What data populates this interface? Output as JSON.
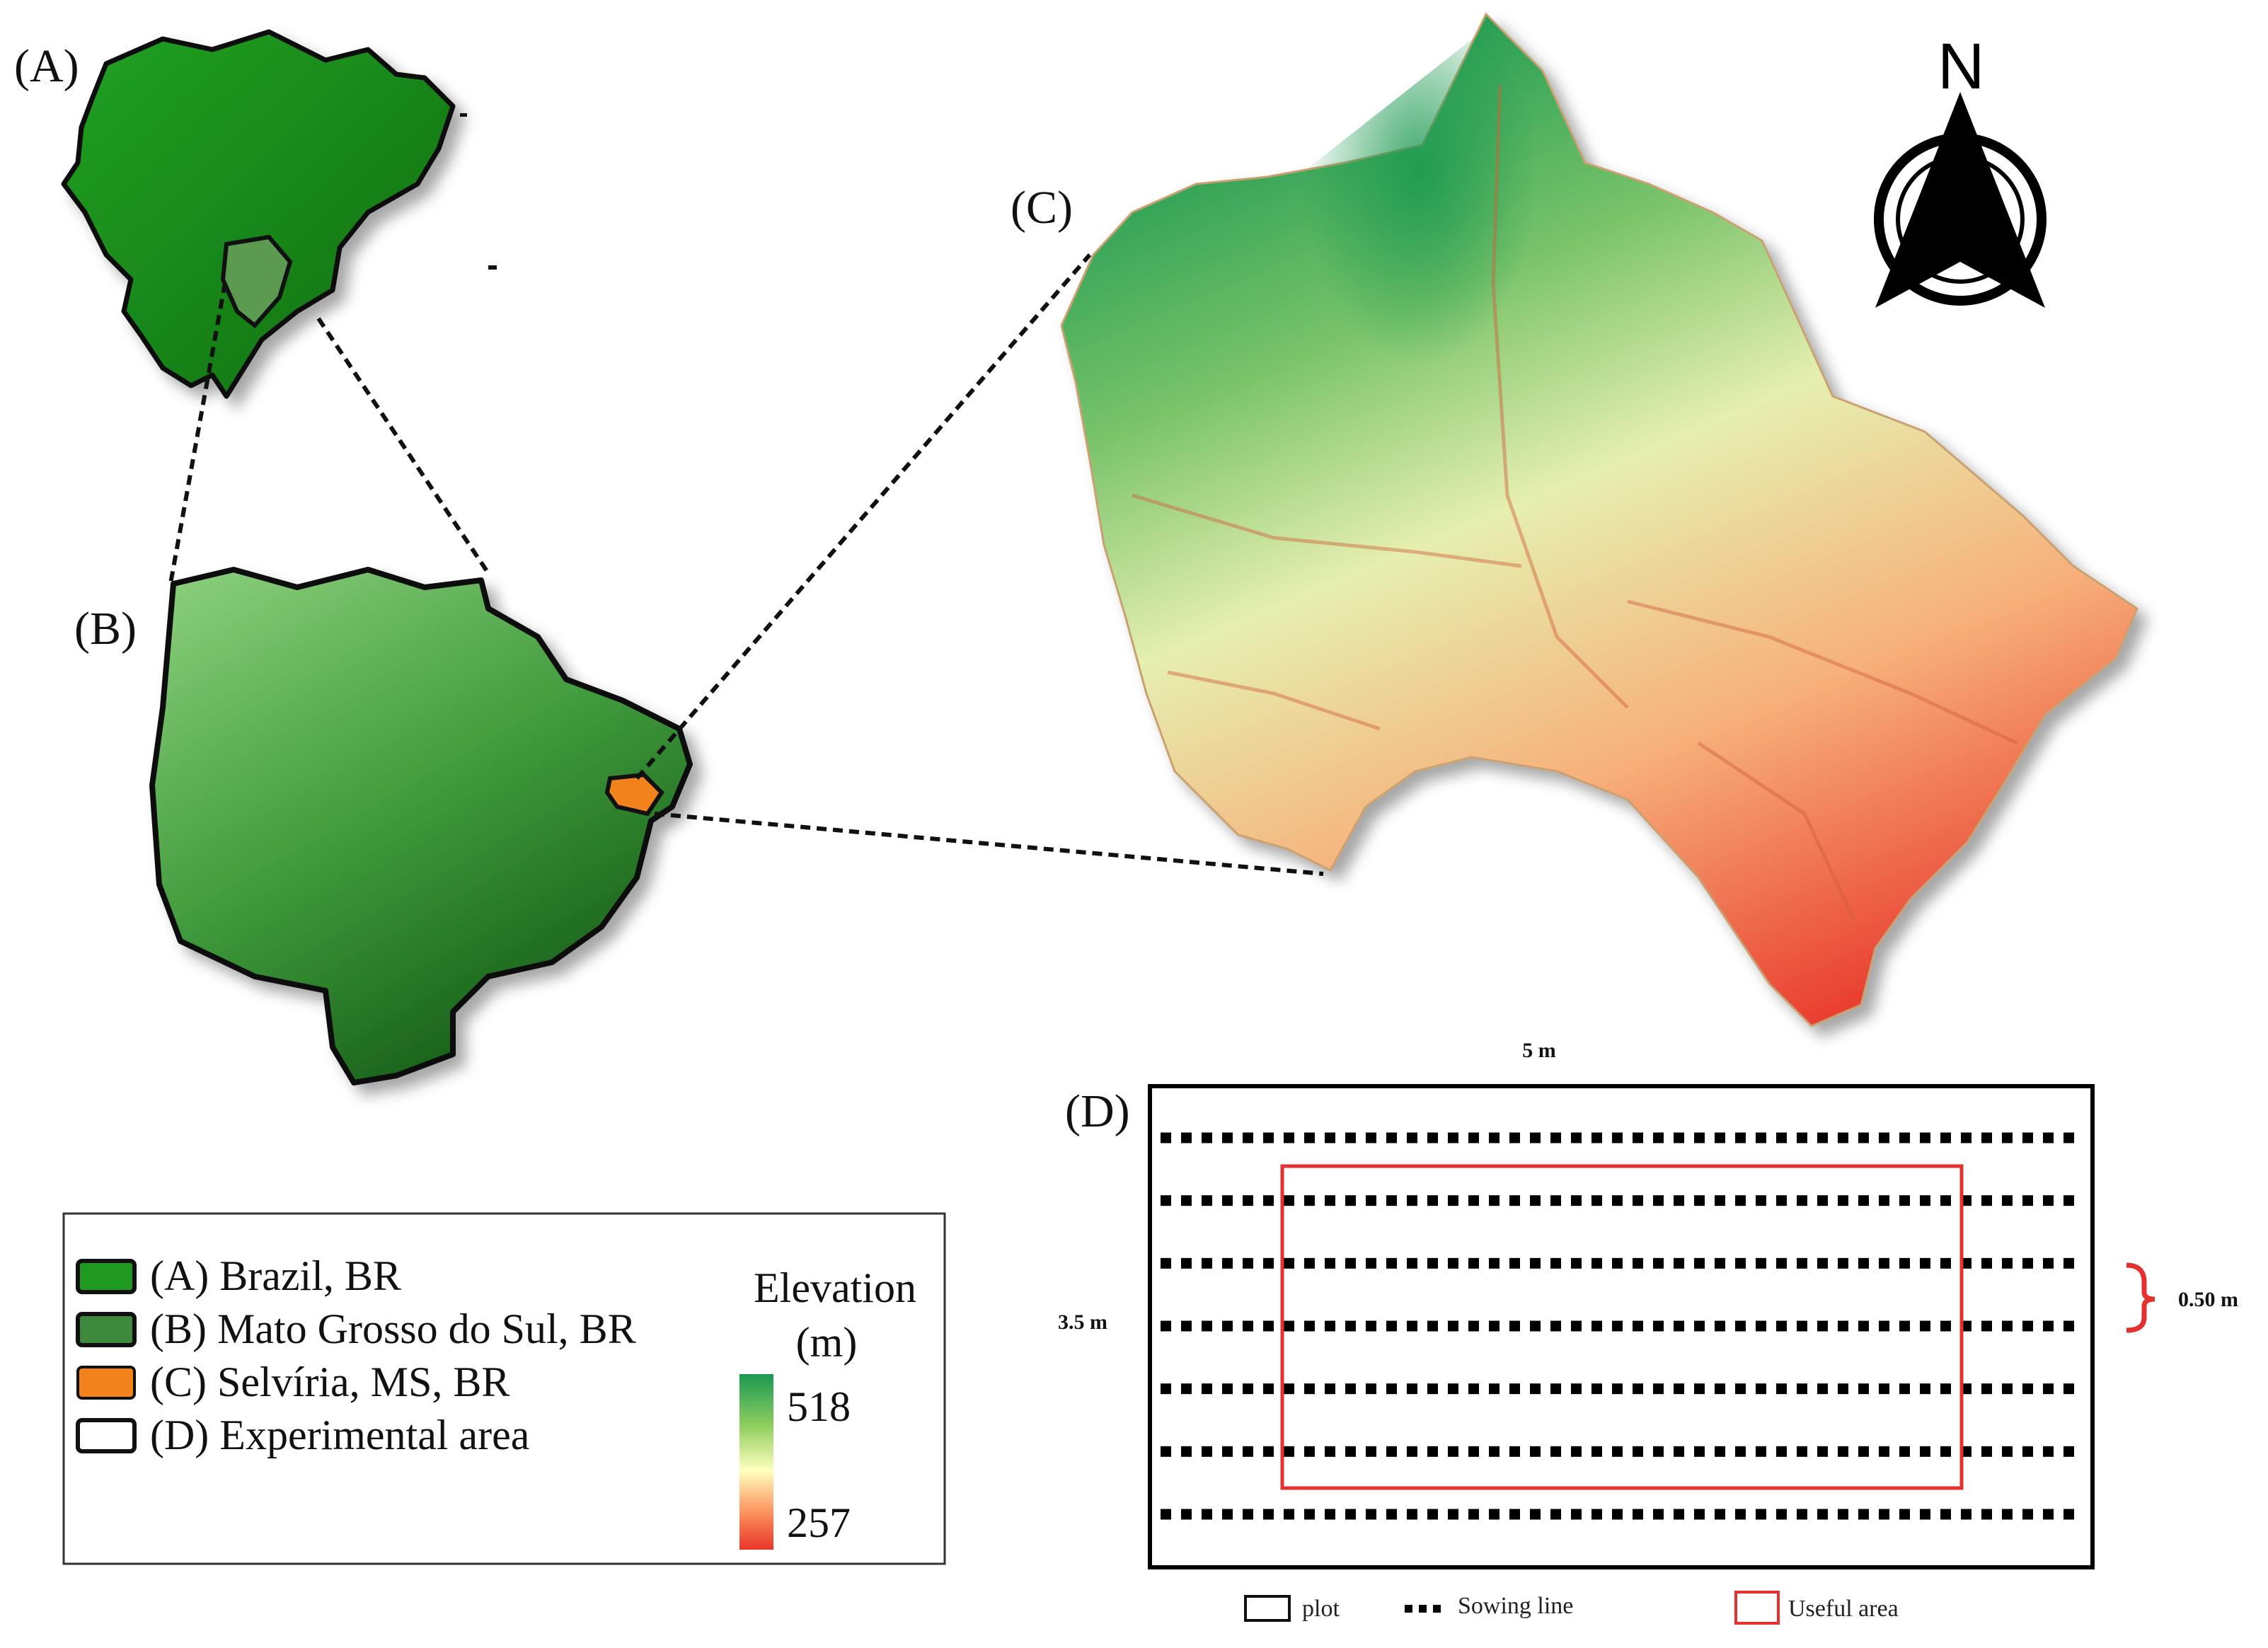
{
  "panels": {
    "a": "(A)",
    "b": "(B)",
    "c": "(C)",
    "d": "(D)"
  },
  "north_arrow": {
    "letter": "N"
  },
  "legend": {
    "items": [
      {
        "label": "(A) Brazil, BR",
        "color": "#1f9a1f"
      },
      {
        "label": "(B) Mato Grosso do Sul, BR",
        "color": "#3d8a3d"
      },
      {
        "label": "(C) Selvíria, MS, BR",
        "color": "#f2821c"
      },
      {
        "label": "(D) Experimental area",
        "color": "#ffffff"
      }
    ],
    "elevation": {
      "title_line1": "Elevation",
      "title_line2": "(m)",
      "max": "518",
      "min": "257",
      "colors": [
        "#1a9850",
        "#91cf60",
        "#ffffbf",
        "#fc8d59",
        "#e8362a"
      ]
    }
  },
  "plot_diagram": {
    "width_label": "5 m",
    "height_label": "3.5 m",
    "spacing_label": "0.50 m",
    "sowing_lines": 7,
    "useful_area_color": "#e53030",
    "legend": {
      "plot": "plot",
      "sowing": "Sowing line",
      "useful": "Useful area"
    }
  }
}
